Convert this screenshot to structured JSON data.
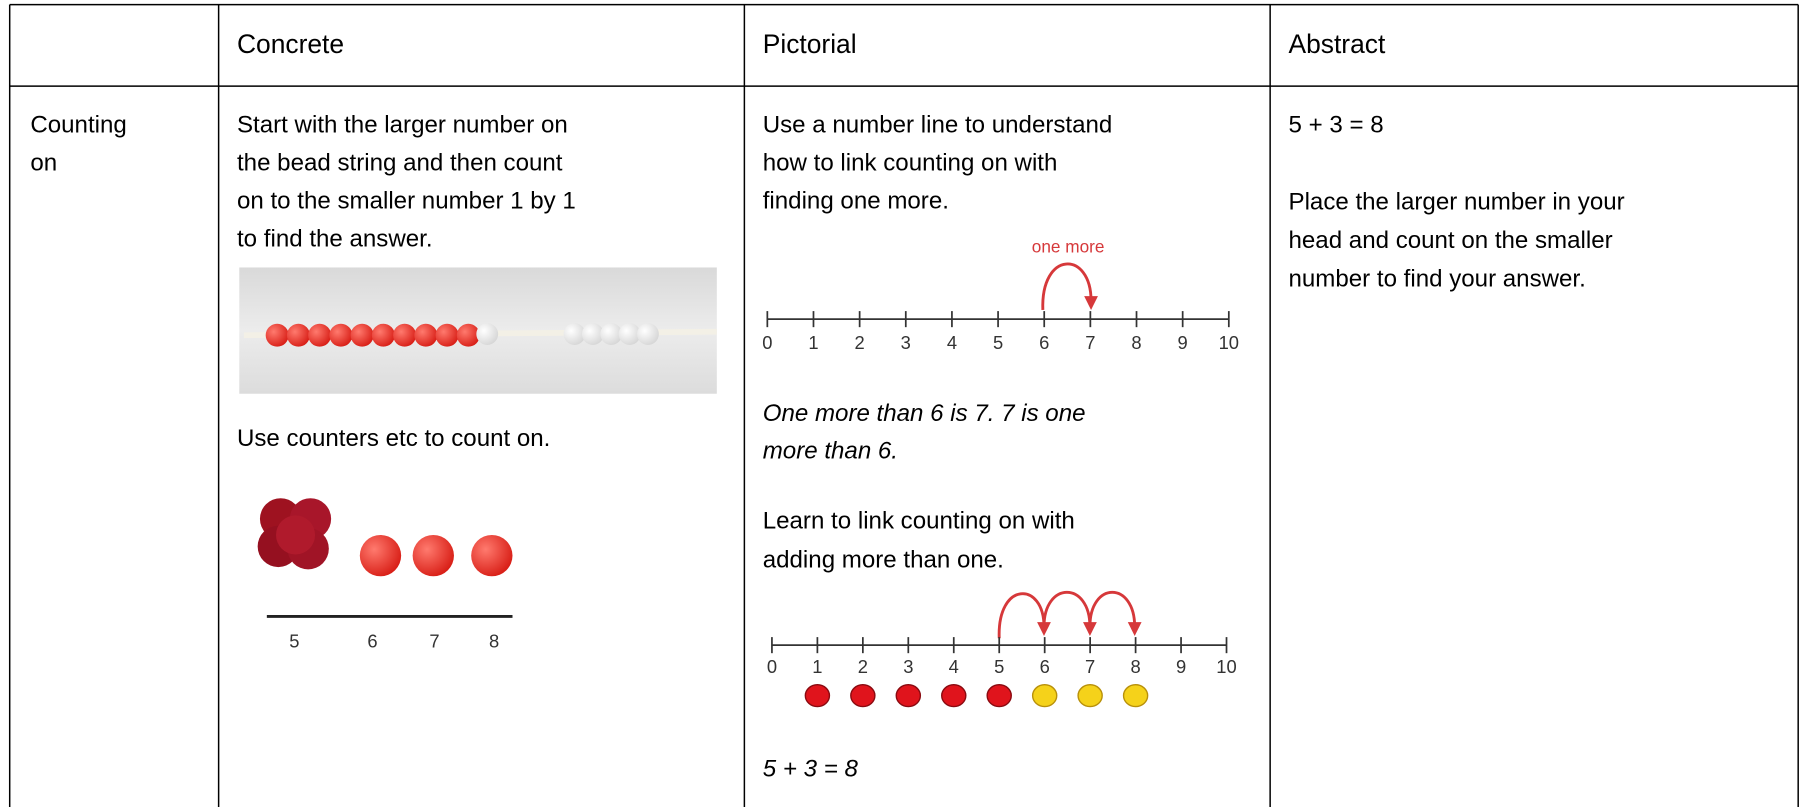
{
  "table": {
    "columns": [
      "Concrete",
      "Pictorial",
      "Abstract"
    ],
    "rows": [
      {
        "label": [
          "Counting",
          "on"
        ],
        "concrete": {
          "intro": [
            "Start with the larger number on",
            "the bead string and then count",
            "on to the smaller number 1 by 1",
            "to find the answer."
          ],
          "counters_text": "Use counters etc to count on.",
          "counter_labels": [
            5,
            6,
            7,
            8
          ]
        },
        "pictorial": {
          "intro": [
            "Use a number line to understand",
            "how to link counting on with",
            "finding one more."
          ],
          "number_line_1": {
            "annotation": "one more",
            "labels": [
              0,
              1,
              2,
              3,
              4,
              5,
              6,
              7,
              8,
              9,
              10
            ]
          },
          "example": [
            "One more than 6 is 7. 7 is one",
            "more than 6."
          ],
          "second": [
            "Learn to link counting on with",
            "adding more than one."
          ],
          "number_line_2": {
            "labels": [
              0,
              1,
              2,
              3,
              4,
              5,
              6,
              7,
              8,
              9,
              10
            ]
          },
          "equation": "5 + 3 = 8"
        },
        "abstract": {
          "equation": "5 + 3 = 8",
          "text": [
            "Place the larger number in your",
            "head and count on the smaller",
            "number to find your answer."
          ]
        }
      }
    ]
  }
}
